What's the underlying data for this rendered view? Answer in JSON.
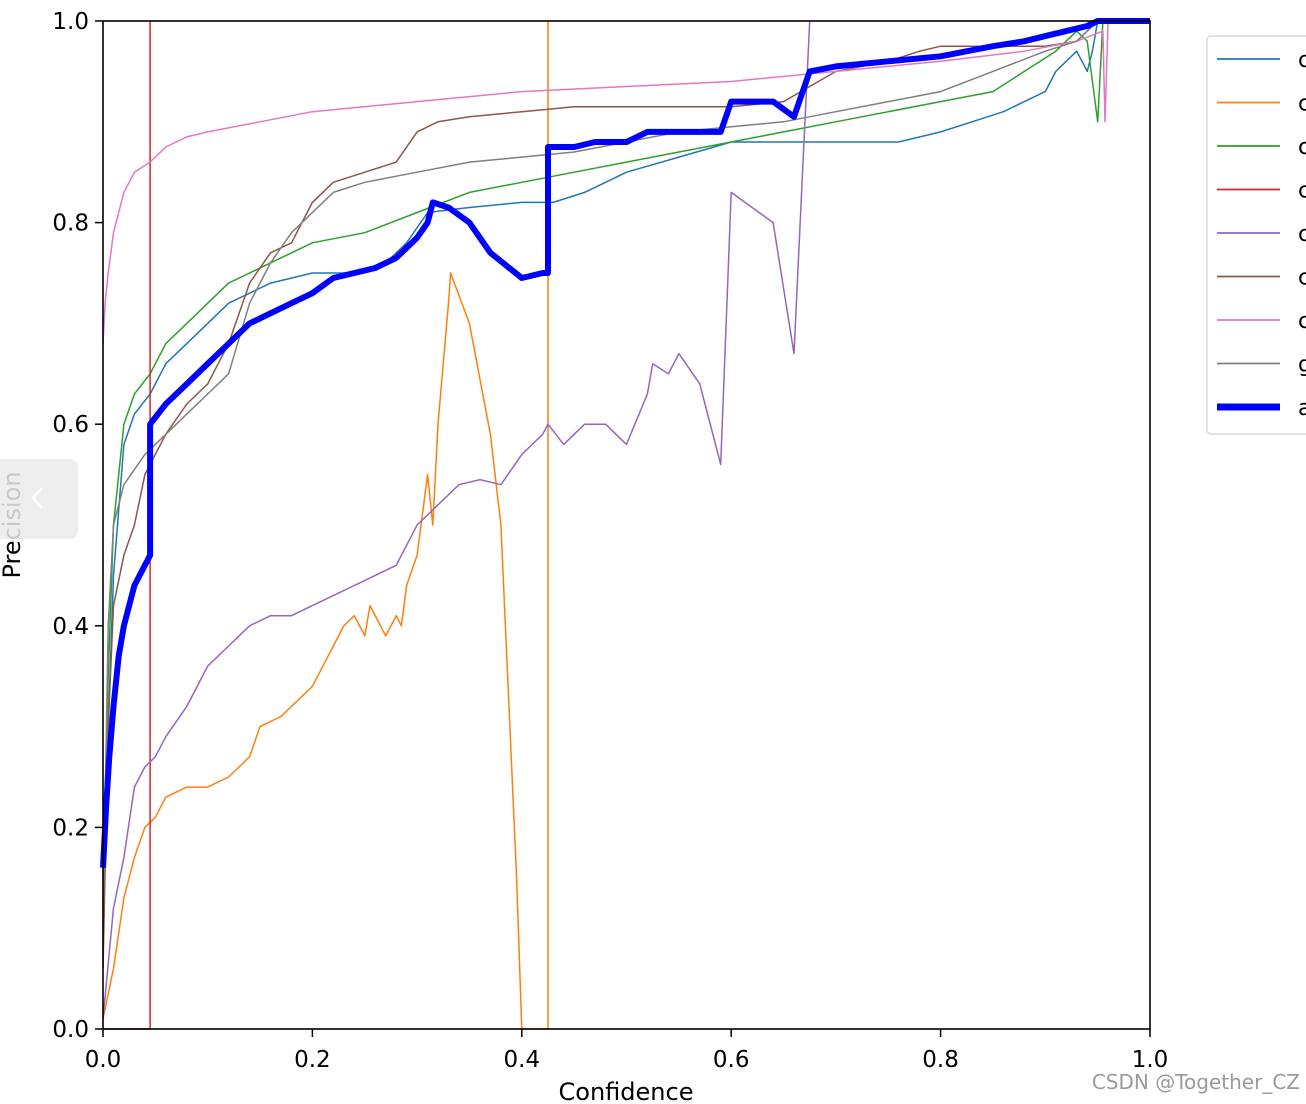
{
  "chart_data": {
    "type": "line",
    "xlabel": "Confidence",
    "ylabel": "Precision",
    "xlim": [
      0.0,
      1.0
    ],
    "ylim": [
      0.0,
      1.0
    ],
    "xticks": [
      "0.0",
      "0.2",
      "0.4",
      "0.6",
      "0.8",
      "1.0"
    ],
    "yticks": [
      "0.0",
      "0.2",
      "0.4",
      "0.6",
      "0.8",
      "1.0"
    ],
    "grid": false,
    "legend_position": "right",
    "series": [
      {
        "name": "c",
        "color": "#1f77b4",
        "width": 1.5,
        "points": [
          [
            0,
            0.12
          ],
          [
            0.005,
            0.3
          ],
          [
            0.01,
            0.45
          ],
          [
            0.02,
            0.58
          ],
          [
            0.03,
            0.61
          ],
          [
            0.045,
            0.63
          ],
          [
            0.06,
            0.66
          ],
          [
            0.08,
            0.68
          ],
          [
            0.1,
            0.7
          ],
          [
            0.12,
            0.72
          ],
          [
            0.14,
            0.73
          ],
          [
            0.16,
            0.74
          ],
          [
            0.2,
            0.75
          ],
          [
            0.24,
            0.75
          ],
          [
            0.27,
            0.76
          ],
          [
            0.29,
            0.78
          ],
          [
            0.31,
            0.81
          ],
          [
            0.35,
            0.815
          ],
          [
            0.4,
            0.82
          ],
          [
            0.43,
            0.82
          ],
          [
            0.46,
            0.83
          ],
          [
            0.5,
            0.85
          ],
          [
            0.55,
            0.865
          ],
          [
            0.6,
            0.88
          ],
          [
            0.63,
            0.88
          ],
          [
            0.7,
            0.88
          ],
          [
            0.76,
            0.88
          ],
          [
            0.8,
            0.89
          ],
          [
            0.83,
            0.9
          ],
          [
            0.86,
            0.91
          ],
          [
            0.88,
            0.92
          ],
          [
            0.9,
            0.93
          ],
          [
            0.91,
            0.95
          ],
          [
            0.92,
            0.96
          ],
          [
            0.93,
            0.97
          ],
          [
            0.94,
            0.95
          ],
          [
            0.945,
            0.97
          ],
          [
            0.95,
            1.0
          ],
          [
            1.0,
            1.0
          ]
        ]
      },
      {
        "name": "c",
        "color": "#ff7f0e",
        "width": 1.5,
        "points": [
          [
            0,
            0.01
          ],
          [
            0.01,
            0.06
          ],
          [
            0.02,
            0.13
          ],
          [
            0.03,
            0.17
          ],
          [
            0.04,
            0.2
          ],
          [
            0.05,
            0.21
          ],
          [
            0.06,
            0.23
          ],
          [
            0.08,
            0.24
          ],
          [
            0.1,
            0.24
          ],
          [
            0.12,
            0.25
          ],
          [
            0.14,
            0.27
          ],
          [
            0.15,
            0.3
          ],
          [
            0.17,
            0.31
          ],
          [
            0.19,
            0.33
          ],
          [
            0.2,
            0.34
          ],
          [
            0.21,
            0.36
          ],
          [
            0.22,
            0.38
          ],
          [
            0.23,
            0.4
          ],
          [
            0.24,
            0.41
          ],
          [
            0.25,
            0.39
          ],
          [
            0.255,
            0.42
          ],
          [
            0.27,
            0.39
          ],
          [
            0.28,
            0.41
          ],
          [
            0.285,
            0.4
          ],
          [
            0.29,
            0.44
          ],
          [
            0.3,
            0.47
          ],
          [
            0.31,
            0.55
          ],
          [
            0.315,
            0.5
          ],
          [
            0.32,
            0.6
          ],
          [
            0.33,
            0.72
          ],
          [
            0.332,
            0.75
          ],
          [
            0.35,
            0.7
          ],
          [
            0.37,
            0.59
          ],
          [
            0.38,
            0.5
          ],
          [
            0.395,
            0.15
          ],
          [
            0.4,
            0.0
          ],
          [
            0.425,
            0.0
          ],
          [
            0.425,
            1.0
          ]
        ]
      },
      {
        "name": "c",
        "color": "#2ca02c",
        "width": 1.5,
        "points": [
          [
            0,
            0.15
          ],
          [
            0.005,
            0.35
          ],
          [
            0.01,
            0.5
          ],
          [
            0.02,
            0.6
          ],
          [
            0.03,
            0.63
          ],
          [
            0.045,
            0.65
          ],
          [
            0.06,
            0.68
          ],
          [
            0.08,
            0.7
          ],
          [
            0.1,
            0.72
          ],
          [
            0.12,
            0.74
          ],
          [
            0.14,
            0.75
          ],
          [
            0.16,
            0.76
          ],
          [
            0.2,
            0.78
          ],
          [
            0.25,
            0.79
          ],
          [
            0.3,
            0.81
          ],
          [
            0.35,
            0.83
          ],
          [
            0.4,
            0.84
          ],
          [
            0.45,
            0.85
          ],
          [
            0.5,
            0.86
          ],
          [
            0.55,
            0.87
          ],
          [
            0.6,
            0.88
          ],
          [
            0.65,
            0.89
          ],
          [
            0.7,
            0.9
          ],
          [
            0.75,
            0.91
          ],
          [
            0.8,
            0.92
          ],
          [
            0.85,
            0.93
          ],
          [
            0.88,
            0.95
          ],
          [
            0.91,
            0.97
          ],
          [
            0.93,
            0.99
          ],
          [
            0.94,
            0.98
          ],
          [
            0.95,
            0.9
          ],
          [
            0.955,
            1.0
          ],
          [
            1.0,
            1.0
          ]
        ]
      },
      {
        "name": "c",
        "color": "#d62728",
        "width": 1.5,
        "points": [
          [
            0,
            0.0
          ],
          [
            0.045,
            0.0
          ],
          [
            0.045,
            1.0
          ]
        ]
      },
      {
        "name": "c",
        "color": "#9467bd",
        "width": 1.5,
        "points": [
          [
            0,
            0.01
          ],
          [
            0.01,
            0.12
          ],
          [
            0.02,
            0.17
          ],
          [
            0.03,
            0.24
          ],
          [
            0.04,
            0.26
          ],
          [
            0.05,
            0.27
          ],
          [
            0.06,
            0.29
          ],
          [
            0.08,
            0.32
          ],
          [
            0.1,
            0.36
          ],
          [
            0.12,
            0.38
          ],
          [
            0.13,
            0.39
          ],
          [
            0.14,
            0.4
          ],
          [
            0.16,
            0.41
          ],
          [
            0.18,
            0.41
          ],
          [
            0.2,
            0.42
          ],
          [
            0.22,
            0.43
          ],
          [
            0.24,
            0.44
          ],
          [
            0.26,
            0.45
          ],
          [
            0.28,
            0.46
          ],
          [
            0.3,
            0.5
          ],
          [
            0.32,
            0.52
          ],
          [
            0.34,
            0.54
          ],
          [
            0.36,
            0.545
          ],
          [
            0.38,
            0.54
          ],
          [
            0.4,
            0.57
          ],
          [
            0.42,
            0.59
          ],
          [
            0.425,
            0.6
          ],
          [
            0.44,
            0.58
          ],
          [
            0.46,
            0.6
          ],
          [
            0.48,
            0.6
          ],
          [
            0.5,
            0.58
          ],
          [
            0.52,
            0.63
          ],
          [
            0.525,
            0.66
          ],
          [
            0.54,
            0.65
          ],
          [
            0.55,
            0.67
          ],
          [
            0.57,
            0.64
          ],
          [
            0.59,
            0.56
          ],
          [
            0.6,
            0.83
          ],
          [
            0.64,
            0.8
          ],
          [
            0.66,
            0.67
          ],
          [
            0.675,
            1.0
          ]
        ]
      },
      {
        "name": "c",
        "color": "#8c564b",
        "width": 1.5,
        "points": [
          [
            0,
            0.06
          ],
          [
            0.005,
            0.3
          ],
          [
            0.01,
            0.42
          ],
          [
            0.02,
            0.47
          ],
          [
            0.03,
            0.5
          ],
          [
            0.04,
            0.55
          ],
          [
            0.05,
            0.57
          ],
          [
            0.06,
            0.59
          ],
          [
            0.08,
            0.62
          ],
          [
            0.1,
            0.64
          ],
          [
            0.11,
            0.66
          ],
          [
            0.12,
            0.68
          ],
          [
            0.14,
            0.74
          ],
          [
            0.16,
            0.77
          ],
          [
            0.18,
            0.78
          ],
          [
            0.2,
            0.82
          ],
          [
            0.22,
            0.84
          ],
          [
            0.25,
            0.85
          ],
          [
            0.28,
            0.86
          ],
          [
            0.3,
            0.89
          ],
          [
            0.32,
            0.9
          ],
          [
            0.35,
            0.905
          ],
          [
            0.4,
            0.91
          ],
          [
            0.45,
            0.915
          ],
          [
            0.5,
            0.915
          ],
          [
            0.55,
            0.915
          ],
          [
            0.6,
            0.915
          ],
          [
            0.65,
            0.92
          ],
          [
            0.7,
            0.95
          ],
          [
            0.75,
            0.96
          ],
          [
            0.78,
            0.97
          ],
          [
            0.8,
            0.975
          ],
          [
            0.85,
            0.975
          ],
          [
            0.9,
            0.975
          ],
          [
            0.93,
            0.98
          ],
          [
            0.95,
            1.0
          ],
          [
            1.0,
            1.0
          ]
        ]
      },
      {
        "name": "c",
        "color": "#e377c2",
        "width": 1.5,
        "points": [
          [
            0,
            0.68
          ],
          [
            0.002,
            0.72
          ],
          [
            0.005,
            0.75
          ],
          [
            0.01,
            0.79
          ],
          [
            0.02,
            0.83
          ],
          [
            0.03,
            0.85
          ],
          [
            0.045,
            0.86
          ],
          [
            0.06,
            0.875
          ],
          [
            0.08,
            0.885
          ],
          [
            0.1,
            0.89
          ],
          [
            0.15,
            0.9
          ],
          [
            0.2,
            0.91
          ],
          [
            0.3,
            0.92
          ],
          [
            0.4,
            0.93
          ],
          [
            0.5,
            0.935
          ],
          [
            0.6,
            0.94
          ],
          [
            0.7,
            0.95
          ],
          [
            0.8,
            0.96
          ],
          [
            0.88,
            0.97
          ],
          [
            0.93,
            0.98
          ],
          [
            0.955,
            0.99
          ],
          [
            0.957,
            0.9
          ],
          [
            0.96,
            1.0
          ],
          [
            1.0,
            1.0
          ]
        ]
      },
      {
        "name": "g",
        "color": "#7f7f7f",
        "width": 1.5,
        "points": [
          [
            0,
            0.1
          ],
          [
            0.005,
            0.4
          ],
          [
            0.01,
            0.5
          ],
          [
            0.02,
            0.54
          ],
          [
            0.04,
            0.57
          ],
          [
            0.06,
            0.59
          ],
          [
            0.08,
            0.61
          ],
          [
            0.1,
            0.63
          ],
          [
            0.12,
            0.65
          ],
          [
            0.14,
            0.72
          ],
          [
            0.16,
            0.76
          ],
          [
            0.18,
            0.79
          ],
          [
            0.2,
            0.81
          ],
          [
            0.22,
            0.83
          ],
          [
            0.25,
            0.84
          ],
          [
            0.3,
            0.85
          ],
          [
            0.35,
            0.86
          ],
          [
            0.4,
            0.865
          ],
          [
            0.45,
            0.87
          ],
          [
            0.5,
            0.88
          ],
          [
            0.55,
            0.89
          ],
          [
            0.6,
            0.895
          ],
          [
            0.65,
            0.9
          ],
          [
            0.7,
            0.91
          ],
          [
            0.75,
            0.92
          ],
          [
            0.8,
            0.93
          ],
          [
            0.85,
            0.95
          ],
          [
            0.9,
            0.97
          ],
          [
            0.93,
            0.98
          ],
          [
            0.95,
            1.0
          ],
          [
            1.0,
            1.0
          ]
        ]
      },
      {
        "name": "a",
        "color": "#0000ff",
        "width": 6,
        "points": [
          [
            0,
            0.16
          ],
          [
            0.003,
            0.22
          ],
          [
            0.006,
            0.27
          ],
          [
            0.01,
            0.32
          ],
          [
            0.015,
            0.37
          ],
          [
            0.02,
            0.4
          ],
          [
            0.03,
            0.44
          ],
          [
            0.04,
            0.46
          ],
          [
            0.045,
            0.47
          ],
          [
            0.045,
            0.6
          ],
          [
            0.06,
            0.62
          ],
          [
            0.08,
            0.64
          ],
          [
            0.1,
            0.66
          ],
          [
            0.12,
            0.68
          ],
          [
            0.14,
            0.7
          ],
          [
            0.16,
            0.71
          ],
          [
            0.18,
            0.72
          ],
          [
            0.2,
            0.73
          ],
          [
            0.22,
            0.745
          ],
          [
            0.24,
            0.75
          ],
          [
            0.26,
            0.755
          ],
          [
            0.28,
            0.765
          ],
          [
            0.3,
            0.785
          ],
          [
            0.31,
            0.8
          ],
          [
            0.315,
            0.82
          ],
          [
            0.33,
            0.815
          ],
          [
            0.35,
            0.8
          ],
          [
            0.37,
            0.77
          ],
          [
            0.4,
            0.745
          ],
          [
            0.42,
            0.75
          ],
          [
            0.425,
            0.75
          ],
          [
            0.425,
            0.875
          ],
          [
            0.45,
            0.875
          ],
          [
            0.47,
            0.88
          ],
          [
            0.5,
            0.88
          ],
          [
            0.52,
            0.89
          ],
          [
            0.55,
            0.89
          ],
          [
            0.58,
            0.89
          ],
          [
            0.59,
            0.89
          ],
          [
            0.6,
            0.92
          ],
          [
            0.64,
            0.92
          ],
          [
            0.66,
            0.905
          ],
          [
            0.675,
            0.95
          ],
          [
            0.7,
            0.955
          ],
          [
            0.75,
            0.96
          ],
          [
            0.8,
            0.965
          ],
          [
            0.85,
            0.975
          ],
          [
            0.88,
            0.98
          ],
          [
            0.9,
            0.985
          ],
          [
            0.92,
            0.99
          ],
          [
            0.94,
            0.995
          ],
          [
            0.95,
            1.0
          ],
          [
            1.0,
            1.0
          ]
        ]
      }
    ]
  },
  "side_tab": {
    "icon": "chevron-left-icon"
  },
  "watermark": "CSDN @Together_CZ"
}
